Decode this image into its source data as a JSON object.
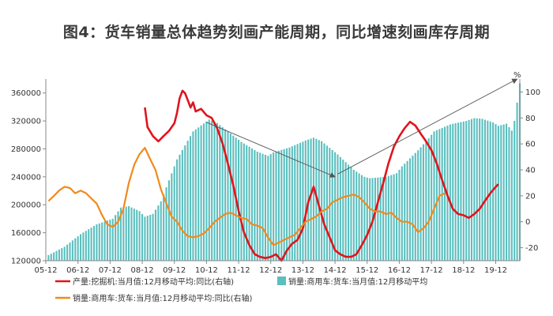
{
  "title": "图4：货车销量总体趋势刻画产能周期，同比增速刻画库存周期",
  "colors": {
    "bars": "#5bbfbf",
    "excavator": "#e0141c",
    "truck_yoy": "#f08a1c",
    "arrow": "#555555",
    "axis": "#888888"
  },
  "chart_data": {
    "type": "bar+line",
    "title": "图4：货车销量总体趋势刻画产能周期，同比增速刻画库存周期",
    "x_range": [
      2005.917,
      2020.667
    ],
    "x_ticks": [
      "05-12",
      "06-12",
      "07-12",
      "08-12",
      "09-12",
      "10-12",
      "11-12",
      "12-12",
      "13-12",
      "14-12",
      "15-12",
      "16-12",
      "17-12",
      "18-12",
      "19-12"
    ],
    "y_left": {
      "range": [
        120000,
        380000
      ],
      "ticks": [
        "120000",
        "160000",
        "200000",
        "240000",
        "280000",
        "320000",
        "360000"
      ]
    },
    "y_right": {
      "range": [
        -30,
        110
      ],
      "ticks": [
        "-20",
        "0",
        "20",
        "40",
        "60",
        "80",
        "100"
      ],
      "unit": "%"
    },
    "series": [
      {
        "name": "销量:商用车:货车:当月值:12月移动平均",
        "type": "bar",
        "axis": "left",
        "points": [
          [
            2006.0,
            128000
          ],
          [
            2006.5,
            140000
          ],
          [
            2007.0,
            158000
          ],
          [
            2007.5,
            172000
          ],
          [
            2008.0,
            180000
          ],
          [
            2008.25,
            196000
          ],
          [
            2008.5,
            198000
          ],
          [
            2008.83,
            191000
          ],
          [
            2009.0,
            183000
          ],
          [
            2009.25,
            187000
          ],
          [
            2009.5,
            205000
          ],
          [
            2009.75,
            235000
          ],
          [
            2010.0,
            265000
          ],
          [
            2010.5,
            305000
          ],
          [
            2011.0,
            322000
          ],
          [
            2011.25,
            317000
          ],
          [
            2011.5,
            308000
          ],
          [
            2012.0,
            290000
          ],
          [
            2012.5,
            276000
          ],
          [
            2012.83,
            270000
          ],
          [
            2013.0,
            275000
          ],
          [
            2013.5,
            282000
          ],
          [
            2014.0,
            292000
          ],
          [
            2014.25,
            296000
          ],
          [
            2014.5,
            291000
          ],
          [
            2015.0,
            272000
          ],
          [
            2015.5,
            250000
          ],
          [
            2015.83,
            240000
          ],
          [
            2016.0,
            238000
          ],
          [
            2016.5,
            240000
          ],
          [
            2016.83,
            245000
          ],
          [
            2017.0,
            255000
          ],
          [
            2017.5,
            278000
          ],
          [
            2017.83,
            295000
          ],
          [
            2018.0,
            305000
          ],
          [
            2018.5,
            315000
          ],
          [
            2019.0,
            320000
          ],
          [
            2019.25,
            324000
          ],
          [
            2019.5,
            323000
          ],
          [
            2019.83,
            318000
          ],
          [
            2020.0,
            313000
          ],
          [
            2020.25,
            316000
          ],
          [
            2020.42,
            306000
          ],
          [
            2020.5,
            320000
          ],
          [
            2020.58,
            345000
          ],
          [
            2020.67,
            375000
          ]
        ]
      },
      {
        "name": "产量:挖掘机:当月值:12月移动平均:同比(右轴)",
        "type": "line",
        "axis": "right",
        "points": [
          [
            2009.0,
            88
          ],
          [
            2009.08,
            73
          ],
          [
            2009.25,
            66
          ],
          [
            2009.42,
            62
          ],
          [
            2009.58,
            66
          ],
          [
            2009.75,
            70
          ],
          [
            2009.92,
            76
          ],
          [
            2010.0,
            84
          ],
          [
            2010.08,
            95
          ],
          [
            2010.17,
            101
          ],
          [
            2010.25,
            99
          ],
          [
            2010.33,
            94
          ],
          [
            2010.42,
            88
          ],
          [
            2010.5,
            92
          ],
          [
            2010.58,
            85
          ],
          [
            2010.75,
            87
          ],
          [
            2010.92,
            82
          ],
          [
            2011.08,
            80
          ],
          [
            2011.25,
            72
          ],
          [
            2011.42,
            60
          ],
          [
            2011.58,
            45
          ],
          [
            2011.75,
            28
          ],
          [
            2011.92,
            8
          ],
          [
            2012.08,
            -8
          ],
          [
            2012.25,
            -18
          ],
          [
            2012.42,
            -25
          ],
          [
            2012.58,
            -27
          ],
          [
            2012.75,
            -28
          ],
          [
            2012.92,
            -27
          ],
          [
            2013.08,
            -25
          ],
          [
            2013.25,
            -30
          ],
          [
            2013.42,
            -22
          ],
          [
            2013.58,
            -17
          ],
          [
            2013.75,
            -14
          ],
          [
            2013.92,
            -5
          ],
          [
            2014.08,
            15
          ],
          [
            2014.25,
            27
          ],
          [
            2014.42,
            12
          ],
          [
            2014.58,
            -2
          ],
          [
            2014.75,
            -12
          ],
          [
            2014.92,
            -22
          ],
          [
            2015.08,
            -25
          ],
          [
            2015.25,
            -27
          ],
          [
            2015.42,
            -27
          ],
          [
            2015.58,
            -25
          ],
          [
            2015.75,
            -18
          ],
          [
            2015.92,
            -10
          ],
          [
            2016.08,
            0
          ],
          [
            2016.25,
            15
          ],
          [
            2016.42,
            30
          ],
          [
            2016.58,
            45
          ],
          [
            2016.75,
            58
          ],
          [
            2016.92,
            66
          ],
          [
            2017.08,
            72
          ],
          [
            2017.25,
            77
          ],
          [
            2017.42,
            74
          ],
          [
            2017.58,
            68
          ],
          [
            2017.75,
            62
          ],
          [
            2017.92,
            55
          ],
          [
            2018.08,
            45
          ],
          [
            2018.25,
            32
          ],
          [
            2018.42,
            20
          ],
          [
            2018.58,
            10
          ],
          [
            2018.75,
            6
          ],
          [
            2018.92,
            5
          ],
          [
            2019.08,
            3
          ],
          [
            2019.25,
            6
          ],
          [
            2019.42,
            10
          ],
          [
            2019.58,
            16
          ],
          [
            2019.75,
            22
          ],
          [
            2019.92,
            27
          ],
          [
            2020.0,
            29
          ]
        ]
      },
      {
        "name": "销量:商用车:货车:当月值:12月移动平均:同比(右轴)",
        "type": "line",
        "axis": "right",
        "points": [
          [
            2006.0,
            16
          ],
          [
            2006.17,
            20
          ],
          [
            2006.33,
            24
          ],
          [
            2006.5,
            27
          ],
          [
            2006.67,
            26
          ],
          [
            2006.83,
            22
          ],
          [
            2007.0,
            24
          ],
          [
            2007.17,
            22
          ],
          [
            2007.33,
            18
          ],
          [
            2007.5,
            14
          ],
          [
            2007.67,
            5
          ],
          [
            2007.83,
            -2
          ],
          [
            2008.0,
            -4
          ],
          [
            2008.17,
            0
          ],
          [
            2008.33,
            10
          ],
          [
            2008.5,
            30
          ],
          [
            2008.67,
            44
          ],
          [
            2008.83,
            52
          ],
          [
            2009.0,
            57
          ],
          [
            2009.17,
            48
          ],
          [
            2009.33,
            40
          ],
          [
            2009.5,
            25
          ],
          [
            2009.67,
            14
          ],
          [
            2009.83,
            4
          ],
          [
            2010.0,
            0
          ],
          [
            2010.17,
            -7
          ],
          [
            2010.33,
            -11
          ],
          [
            2010.5,
            -12
          ],
          [
            2010.67,
            -11
          ],
          [
            2010.83,
            -9
          ],
          [
            2011.0,
            -5
          ],
          [
            2011.17,
            0
          ],
          [
            2011.33,
            3
          ],
          [
            2011.5,
            6
          ],
          [
            2011.67,
            7
          ],
          [
            2011.83,
            5
          ],
          [
            2012.0,
            3
          ],
          [
            2012.17,
            2
          ],
          [
            2012.33,
            -2
          ],
          [
            2012.5,
            -3
          ],
          [
            2012.67,
            -5
          ],
          [
            2012.83,
            -12
          ],
          [
            2013.0,
            -18
          ],
          [
            2013.17,
            -16
          ],
          [
            2013.33,
            -14
          ],
          [
            2013.5,
            -12
          ],
          [
            2013.67,
            -10
          ],
          [
            2013.83,
            -5
          ],
          [
            2014.0,
            0
          ],
          [
            2014.17,
            2
          ],
          [
            2014.33,
            4
          ],
          [
            2014.5,
            8
          ],
          [
            2014.67,
            10
          ],
          [
            2014.83,
            15
          ],
          [
            2015.0,
            17
          ],
          [
            2015.17,
            19
          ],
          [
            2015.33,
            20
          ],
          [
            2015.5,
            21
          ],
          [
            2015.67,
            19
          ],
          [
            2015.83,
            15
          ],
          [
            2016.0,
            10
          ],
          [
            2016.17,
            8
          ],
          [
            2016.33,
            8
          ],
          [
            2016.5,
            6
          ],
          [
            2016.67,
            7
          ],
          [
            2016.83,
            3
          ],
          [
            2017.0,
            0
          ],
          [
            2017.17,
            0
          ],
          [
            2017.33,
            -2
          ],
          [
            2017.5,
            -8
          ],
          [
            2017.67,
            -5
          ],
          [
            2017.83,
            0
          ],
          [
            2018.0,
            10
          ],
          [
            2018.17,
            20
          ],
          [
            2018.33,
            22
          ]
        ]
      }
    ],
    "annotations": [
      {
        "type": "arrow",
        "from": [
          2010.917,
          318000
        ],
        "to": [
          2014.917,
          240000
        ]
      },
      {
        "type": "arrow",
        "from": [
          2015.0,
          244000
        ],
        "to": [
          2020.583,
          380000
        ]
      }
    ],
    "legend_position": "bottom",
    "grid": false
  }
}
